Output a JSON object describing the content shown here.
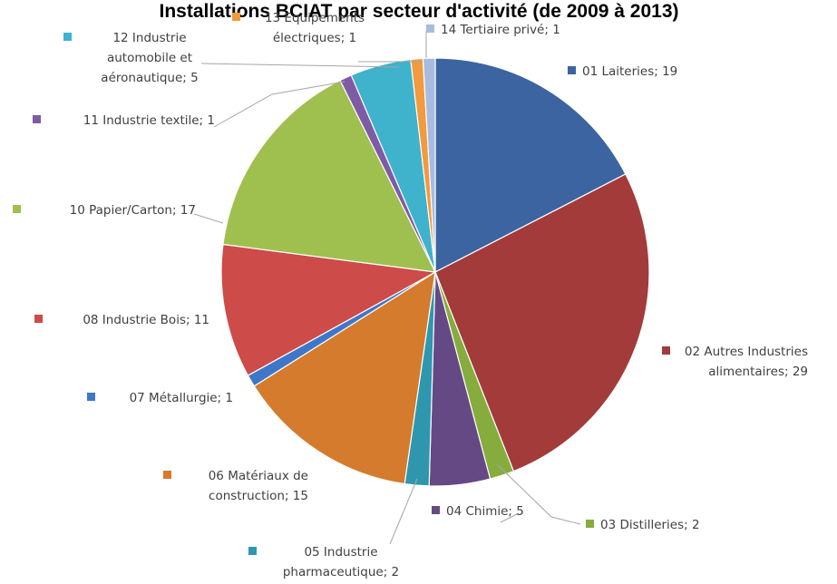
{
  "chart_data": {
    "type": "pie",
    "title": "Installations BCIAT par secteur d'activité (de 2009 à 2013)",
    "slices": [
      {
        "label": "01 Laiteries; 19",
        "value": 19,
        "color": "#3b64a0"
      },
      {
        "label": "02 Autres Industries alimentaires; 29",
        "value": 29,
        "color": "#a33b3b"
      },
      {
        "label": "03 Distilleries; 2",
        "value": 2,
        "color": "#86ac3d"
      },
      {
        "label": "04 Chimie; 5",
        "value": 5,
        "color": "#654984"
      },
      {
        "label": "05 Industrie pharmaceutique; 2",
        "value": 2,
        "color": "#2e97ad"
      },
      {
        "label": "06 Matériaux de construction; 15",
        "value": 15,
        "color": "#d47b2d"
      },
      {
        "label": "07 Métallurgie; 1",
        "value": 1,
        "color": "#3f77c8"
      },
      {
        "label": "08 Industrie Bois; 11",
        "value": 11,
        "color": "#cd4b48"
      },
      {
        "label": "10 Papier/Carton; 17",
        "value": 17,
        "color": "#9fc04f"
      },
      {
        "label": "11 Industrie textile; 1",
        "value": 1,
        "color": "#7f5ba6"
      },
      {
        "label": "12 Industrie automobile et aéronautique; 5",
        "value": 5,
        "color": "#3fb2cc"
      },
      {
        "label": "13 Equipements électriques; 1",
        "value": 1,
        "color": "#f19a3e"
      },
      {
        "label": "14 Tertiaire privé; 1",
        "value": 1,
        "color": "#a8bce0"
      }
    ]
  }
}
